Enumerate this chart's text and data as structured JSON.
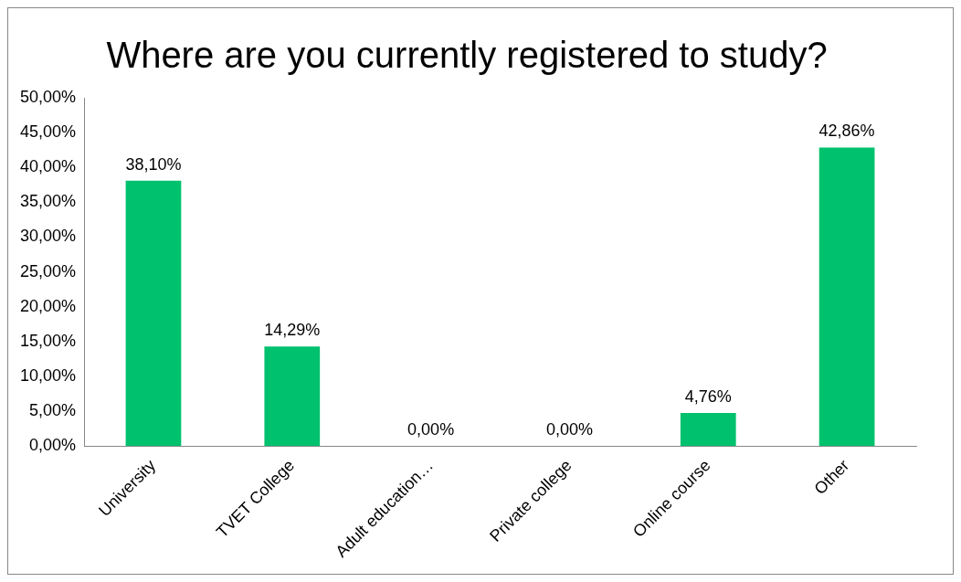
{
  "chart_data": {
    "type": "bar",
    "title": "Where are you currently registered to study?",
    "categories": [
      "University",
      "TVET College",
      "Adult education…",
      "Private college",
      "Online course",
      "Other"
    ],
    "values": [
      38.1,
      14.29,
      0,
      0,
      4.76,
      42.86
    ],
    "value_labels": [
      "38,10%",
      "14,29%",
      "0,00%",
      "0,00%",
      "4,76%",
      "42,86%"
    ],
    "color": "#00c16e",
    "ylim": [
      0,
      50
    ],
    "yticks": [
      {
        "value": 0,
        "label": "0,00%"
      },
      {
        "value": 5,
        "label": "5,00%"
      },
      {
        "value": 10,
        "label": "10,00%"
      },
      {
        "value": 15,
        "label": "15,00%"
      },
      {
        "value": 20,
        "label": "20,00%"
      },
      {
        "value": 25,
        "label": "25,00%"
      },
      {
        "value": 30,
        "label": "30,00%"
      },
      {
        "value": 35,
        "label": "35,00%"
      },
      {
        "value": 40,
        "label": "40,00%"
      },
      {
        "value": 45,
        "label": "45,00%"
      },
      {
        "value": 50,
        "label": "50,00%"
      }
    ],
    "grid": false,
    "legend": false
  }
}
